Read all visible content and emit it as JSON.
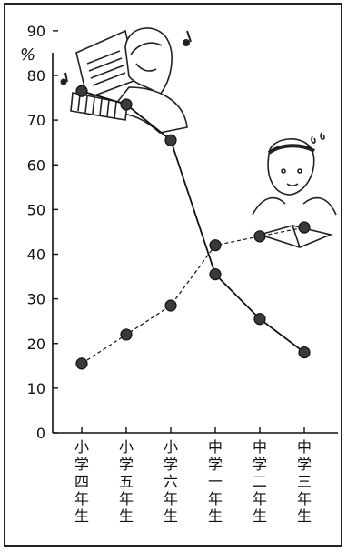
{
  "chart_data": {
    "type": "line",
    "ylabel": "%",
    "ylim": [
      0,
      100
    ],
    "yticks": [
      0,
      10,
      20,
      30,
      40,
      50,
      60,
      70,
      80,
      90
    ],
    "categories": [
      "小学四年生",
      "小学五年生",
      "小学六年生",
      "中学一年生",
      "中学二年生",
      "中学三年生"
    ],
    "series": [
      {
        "style": "solid",
        "values": [
          76.5,
          73.5,
          65.5,
          35.5,
          25.5,
          18
        ]
      },
      {
        "style": "dashed",
        "values": [
          15.5,
          22,
          28.5,
          42,
          44,
          46
        ]
      }
    ],
    "grid": false
  },
  "illustrations": [
    "girl-playing-piano-icon",
    "music-note-icon",
    "boy-studying-icon"
  ]
}
